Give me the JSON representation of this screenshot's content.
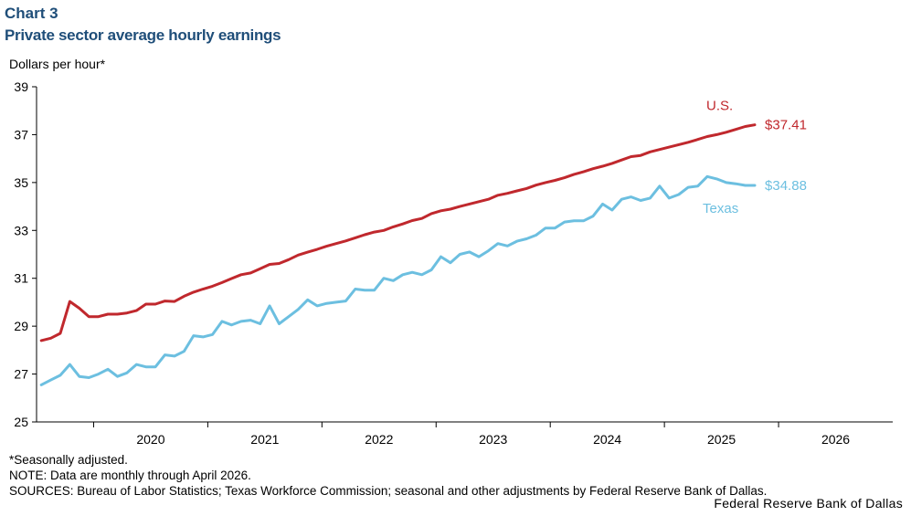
{
  "header": {
    "chart_label": "Chart 3",
    "title": "Private sector average hourly earnings"
  },
  "footer": {
    "note_star": "*Seasonally adjusted.",
    "note_data": "NOTE: Data are monthly through April 2026.",
    "sources": "SOURCES: Bureau of Labor Statistics; Texas Workforce Commission; seasonal and other adjustments by Federal Reserve Bank of Dallas.",
    "credit": "Federal Reserve Bank of Dallas"
  },
  "chart_data": {
    "type": "line",
    "title": "Private sector average hourly earnings",
    "ylabel": "Dollars per hour*",
    "xlabel": "",
    "ylim": [
      25,
      39
    ],
    "yticks": [
      25,
      27,
      29,
      31,
      33,
      35,
      37,
      39
    ],
    "x_axis_labels": [
      "2020",
      "2021",
      "2022",
      "2023",
      "2024",
      "2025",
      "2026"
    ],
    "x_start": "2019-07",
    "x_end": "2026-12",
    "grid": false,
    "series": [
      {
        "name": "U.S.",
        "color": "#c0282d",
        "end_label": "$37.41",
        "values": [
          28.4,
          28.5,
          28.7,
          30.03,
          29.75,
          29.4,
          29.4,
          29.5,
          29.5,
          29.55,
          29.65,
          29.92,
          29.92,
          30.05,
          30.03,
          30.25,
          30.42,
          30.55,
          30.67,
          30.82,
          30.99,
          31.15,
          31.22,
          31.4,
          31.58,
          31.62,
          31.78,
          31.97,
          32.09,
          32.21,
          32.34,
          32.45,
          32.56,
          32.69,
          32.82,
          32.93,
          33.0,
          33.15,
          33.27,
          33.41,
          33.5,
          33.7,
          33.82,
          33.89,
          34.0,
          34.1,
          34.2,
          34.3,
          34.47,
          34.55,
          34.65,
          34.75,
          34.89,
          35.0,
          35.09,
          35.2,
          35.34,
          35.45,
          35.58,
          35.68,
          35.8,
          35.94,
          36.08,
          36.13,
          36.28,
          36.38,
          36.48,
          36.58,
          36.68,
          36.8,
          36.92,
          37.0,
          37.1,
          37.22,
          37.34,
          37.41
        ]
      },
      {
        "name": "Texas",
        "color": "#6cbfe0",
        "end_label": "$34.88",
        "values": [
          26.55,
          26.75,
          26.95,
          27.4,
          26.9,
          26.85,
          27.0,
          27.2,
          26.9,
          27.05,
          27.4,
          27.3,
          27.3,
          27.8,
          27.75,
          27.95,
          28.6,
          28.55,
          28.65,
          29.2,
          29.05,
          29.2,
          29.25,
          29.1,
          29.85,
          29.1,
          29.4,
          29.7,
          30.1,
          29.85,
          29.95,
          30.0,
          30.05,
          30.55,
          30.5,
          30.5,
          31.0,
          30.9,
          31.15,
          31.25,
          31.15,
          31.35,
          31.9,
          31.65,
          32.0,
          32.1,
          31.9,
          32.15,
          32.45,
          32.35,
          32.55,
          32.65,
          32.8,
          33.1,
          33.1,
          33.35,
          33.4,
          33.4,
          33.6,
          34.1,
          33.85,
          34.3,
          34.4,
          34.25,
          34.35,
          34.85,
          34.35,
          34.5,
          34.8,
          34.85,
          35.25,
          35.15,
          35.0,
          34.95,
          34.88,
          34.88
        ]
      }
    ]
  }
}
